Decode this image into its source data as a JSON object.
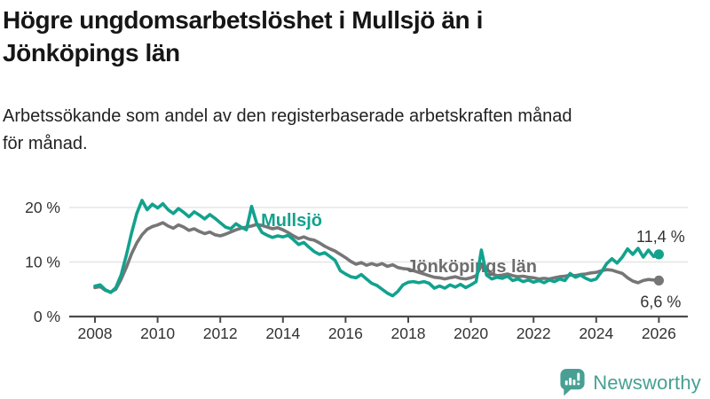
{
  "header": {
    "title": "Högre ungdomsarbetslöshet i Mullsjö än i Jönköpings län",
    "subtitle": "Arbetssökande som andel av den registerbaserade arbetskraften månad för månad."
  },
  "chart_data": {
    "type": "line",
    "title": "Högre ungdomsarbetslöshet i Mullsjö än i Jönköpings län",
    "ylabel": "",
    "xlabel": "",
    "unit": "%",
    "grid": "horizontal",
    "legend_position": "inline-labels",
    "x_start": 2008.0,
    "x_step_years": 0.1666667,
    "x_tick_years": [
      2008,
      2010,
      2012,
      2014,
      2016,
      2018,
      2020,
      2022,
      2024,
      2026
    ],
    "x_tick_labels": [
      "2008",
      "2010",
      "2012",
      "2014",
      "2016",
      "2018",
      "2020",
      "2022",
      "2024",
      "2026"
    ],
    "y_ticks": [
      0,
      10,
      20
    ],
    "y_tick_labels": [
      "0 %",
      "10 %",
      "20 %"
    ],
    "ylim": [
      0,
      22.5
    ],
    "xlim": [
      2007.2,
      2027.0
    ],
    "series": [
      {
        "name": "Mullsjö",
        "color": "#12a28e",
        "label_color": "#12a28e",
        "end_label": "11,4 %",
        "end_value": 11.4,
        "values": [
          5.6,
          5.8,
          4.9,
          4.4,
          5.3,
          7.6,
          11.2,
          15.3,
          18.9,
          21.3,
          19.6,
          20.6,
          19.9,
          20.7,
          19.6,
          18.9,
          19.8,
          19.1,
          18.3,
          19.2,
          18.6,
          17.9,
          18.7,
          18.0,
          17.2,
          16.4,
          16.1,
          17.0,
          16.4,
          15.9,
          20.2,
          17.0,
          15.4,
          14.9,
          14.5,
          14.8,
          14.6,
          14.9,
          14.1,
          13.2,
          13.6,
          12.7,
          11.9,
          11.4,
          11.7,
          11.0,
          10.3,
          8.4,
          7.8,
          7.3,
          7.1,
          7.7,
          6.9,
          6.1,
          5.7,
          5.0,
          4.3,
          3.8,
          4.6,
          5.8,
          6.3,
          6.4,
          6.2,
          6.4,
          6.1,
          5.2,
          5.6,
          5.2,
          5.8,
          5.4,
          5.9,
          5.3,
          5.8,
          6.4,
          12.2,
          7.6,
          6.9,
          7.2,
          7.0,
          7.4,
          6.6,
          6.9,
          6.4,
          6.7,
          6.3,
          6.6,
          6.2,
          6.7,
          6.4,
          6.9,
          6.6,
          7.9,
          7.2,
          7.6,
          7.0,
          6.6,
          6.9,
          8.2,
          9.7,
          10.6,
          9.8,
          10.9,
          12.4,
          11.4,
          12.5,
          10.9,
          12.2,
          11.0,
          11.4
        ]
      },
      {
        "name": "Jönköpings län",
        "color": "#767676",
        "label_color": "#6d6d6d",
        "end_label": "6,6 %",
        "end_value": 6.6,
        "values": [
          5.3,
          5.5,
          4.8,
          4.5,
          5.0,
          6.8,
          9.0,
          11.5,
          13.5,
          15.0,
          16.0,
          16.5,
          16.8,
          17.2,
          16.6,
          16.2,
          16.8,
          16.4,
          15.8,
          16.1,
          15.6,
          15.2,
          15.5,
          15.0,
          14.8,
          15.1,
          15.5,
          15.9,
          16.2,
          16.4,
          16.6,
          16.9,
          16.7,
          16.4,
          16.1,
          16.3,
          15.9,
          15.4,
          14.8,
          14.3,
          14.6,
          14.2,
          14.0,
          13.5,
          12.9,
          12.4,
          12.0,
          11.4,
          10.8,
          10.1,
          9.6,
          9.9,
          9.4,
          9.7,
          9.4,
          9.7,
          9.2,
          9.5,
          9.0,
          8.8,
          8.7,
          8.4,
          8.1,
          7.8,
          7.5,
          7.2,
          7.1,
          6.9,
          7.1,
          7.3,
          7.0,
          6.9,
          7.1,
          7.5,
          9.3,
          8.7,
          7.8,
          7.5,
          7.6,
          7.8,
          7.5,
          7.3,
          7.4,
          7.2,
          7.1,
          6.9,
          7.0,
          6.9,
          7.1,
          7.3,
          7.4,
          7.6,
          7.5,
          7.7,
          7.8,
          8.0,
          8.1,
          8.4,
          8.6,
          8.5,
          8.2,
          7.9,
          7.1,
          6.5,
          6.2,
          6.6,
          6.8,
          6.7,
          6.6
        ]
      }
    ]
  },
  "footer": {
    "brand": "Newsworthy",
    "brand_color": "#47a093"
  },
  "colors": {
    "accent_teal": "#12a28e",
    "series_gray": "#767676",
    "axis": "#4b4b4b",
    "gridline": "#e5e5e5",
    "tick_text": "#333333"
  }
}
